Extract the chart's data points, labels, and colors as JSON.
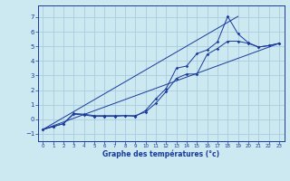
{
  "title": "",
  "xlabel": "Graphe des températures (°c)",
  "ylabel": "",
  "bg_color": "#cce8f0",
  "grid_color": "#aaccdd",
  "line_color": "#1a3a9c",
  "xlim": [
    -0.5,
    23.5
  ],
  "ylim": [
    -1.5,
    7.8
  ],
  "xticks": [
    0,
    1,
    2,
    3,
    4,
    5,
    6,
    7,
    8,
    9,
    10,
    11,
    12,
    13,
    14,
    15,
    16,
    17,
    18,
    19,
    20,
    21,
    22,
    23
  ],
  "yticks": [
    -1,
    0,
    1,
    2,
    3,
    4,
    5,
    6,
    7
  ],
  "series": [
    {
      "x": [
        0,
        1,
        2,
        3,
        4,
        5,
        6,
        7,
        8,
        9,
        10,
        11,
        12,
        13,
        14,
        15,
        16,
        17,
        18,
        19,
        20,
        21,
        22,
        23
      ],
      "y": [
        -0.7,
        -0.5,
        -0.3,
        0.35,
        0.3,
        0.2,
        0.2,
        0.2,
        0.25,
        0.2,
        0.6,
        1.4,
        2.1,
        3.5,
        3.65,
        4.5,
        4.75,
        5.3,
        7.05,
        5.85,
        5.25,
        4.95,
        5.05,
        5.2
      ],
      "marker": true
    },
    {
      "x": [
        0,
        1,
        2,
        3,
        4,
        5,
        6,
        7,
        8,
        9,
        10,
        11,
        12,
        13,
        14,
        15,
        16,
        17,
        18,
        19,
        20,
        21,
        22,
        23
      ],
      "y": [
        -0.7,
        -0.5,
        -0.3,
        0.4,
        0.35,
        0.25,
        0.25,
        0.25,
        0.25,
        0.25,
        0.5,
        1.1,
        1.9,
        2.8,
        3.1,
        3.1,
        4.45,
        4.85,
        5.35,
        5.35,
        5.2,
        4.95,
        5.05,
        5.2
      ],
      "marker": true
    },
    {
      "x": [
        0,
        23
      ],
      "y": [
        -0.7,
        5.2
      ],
      "marker": false
    },
    {
      "x": [
        0,
        19
      ],
      "y": [
        -0.7,
        7.05
      ],
      "marker": false
    }
  ]
}
